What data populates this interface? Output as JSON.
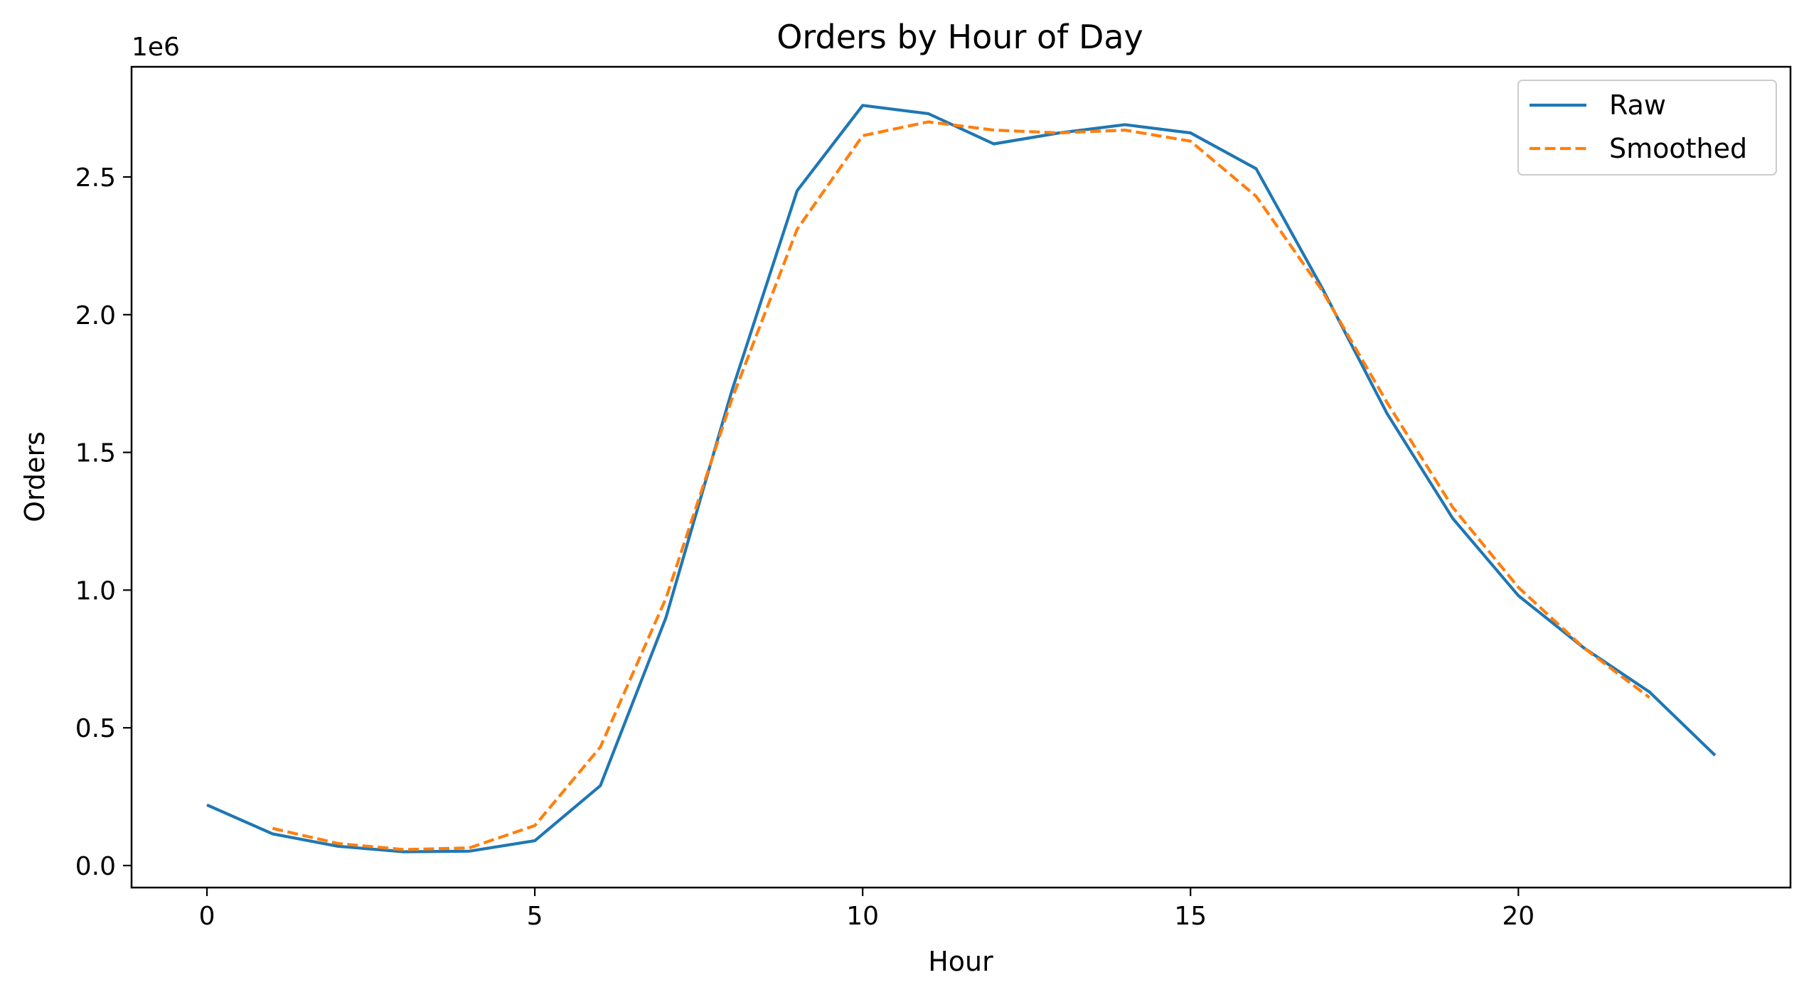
{
  "chart_data": {
    "type": "line",
    "title": "Orders by Hour of Day",
    "xlabel": "Hour",
    "ylabel": "Orders",
    "offset_text": "1e6",
    "xlim": [
      -1.15,
      24.15
    ],
    "ylim": [
      -80000,
      2900000
    ],
    "x_ticks": [
      0,
      5,
      10,
      15,
      20
    ],
    "x_tick_labels": [
      "0",
      "5",
      "10",
      "15",
      "20"
    ],
    "y_ticks": [
      0,
      500000,
      1000000,
      1500000,
      2000000,
      2500000
    ],
    "y_tick_labels": [
      "0.0",
      "0.5",
      "1.0",
      "1.5",
      "2.0",
      "2.5"
    ],
    "grid": false,
    "legend": {
      "position": "upper right",
      "entries": [
        "Raw",
        "Smoothed"
      ]
    },
    "series": [
      {
        "name": "Raw",
        "color": "#1f77b4",
        "style": "solid",
        "x": [
          0,
          1,
          2,
          3,
          4,
          5,
          6,
          7,
          8,
          9,
          10,
          11,
          12,
          13,
          14,
          15,
          16,
          17,
          18,
          19,
          20,
          21,
          22,
          23
        ],
        "y": [
          220000,
          115000,
          70000,
          50000,
          52000,
          90000,
          290000,
          900000,
          1720000,
          2450000,
          2760000,
          2730000,
          2620000,
          2660000,
          2690000,
          2660000,
          2530000,
          2100000,
          1640000,
          1260000,
          980000,
          790000,
          630000,
          400000
        ]
      },
      {
        "name": "Smoothed",
        "color": "#ff7f0e",
        "style": "dashed",
        "x": [
          1,
          2,
          3,
          4,
          5,
          6,
          7,
          8,
          9,
          10,
          11,
          12,
          13,
          14,
          15,
          16,
          17,
          18,
          19,
          20,
          21,
          22
        ],
        "y": [
          135000,
          80000,
          58000,
          64000,
          145000,
          430000,
          970000,
          1690000,
          2310000,
          2650000,
          2700000,
          2670000,
          2660000,
          2670000,
          2630000,
          2430000,
          2090000,
          1680000,
          1300000,
          1010000,
          790000,
          610000
        ]
      }
    ]
  }
}
